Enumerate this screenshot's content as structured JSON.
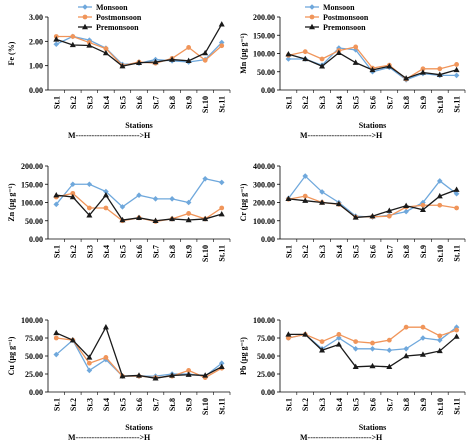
{
  "colors": {
    "Monsoon": "#6fa8dc",
    "Postmonsoon": "#f0955a",
    "Premonsoon": "#1a1a1a"
  },
  "chart_data": [
    {
      "type": "line",
      "categories": [
        "St.1",
        "St.2",
        "St.3",
        "St.4",
        "St.5",
        "St.6",
        "St.7",
        "St.8",
        "St.9",
        "St.10",
        "St.11"
      ],
      "ylabel": "Fe (%)",
      "xlabel": "Stations",
      "gradient_label": "M------------------------>H",
      "yticks": [
        "0.00",
        "1.00",
        "2.00",
        "3.00"
      ],
      "ylim": [
        0,
        3
      ],
      "legend": "top-left",
      "series": [
        {
          "name": "Monsoon",
          "values": [
            1.88,
            2.2,
            2.05,
            1.72,
            1.05,
            1.1,
            1.25,
            1.2,
            1.15,
            1.25,
            1.95
          ]
        },
        {
          "name": "Postmonsoon",
          "values": [
            2.2,
            2.2,
            1.95,
            1.7,
            1.0,
            1.15,
            1.1,
            1.3,
            1.75,
            1.22,
            1.82
          ]
        },
        {
          "name": "Premonsoon",
          "values": [
            2.08,
            1.85,
            1.83,
            1.52,
            0.98,
            1.12,
            1.15,
            1.25,
            1.2,
            1.52,
            2.7
          ]
        }
      ]
    },
    {
      "type": "line",
      "categories": [
        "St.1",
        "St.2",
        "St.3",
        "St.4",
        "St.5",
        "St.6",
        "St.7",
        "St.8",
        "St.9",
        "St.10",
        "St.11"
      ],
      "ylabel": "Mn (µg g⁻¹)",
      "xlabel": "Stations",
      "gradient_label": "M------------------------>H",
      "yticks": [
        "0.00",
        "50.00",
        "100.00",
        "150.00",
        "200.00"
      ],
      "ylim": [
        0,
        200
      ],
      "legend": "top-left",
      "series": [
        {
          "name": "Monsoon",
          "values": [
            85,
            85,
            68,
            115,
            110,
            50,
            62,
            28,
            45,
            40,
            40
          ]
        },
        {
          "name": "Postmonsoon",
          "values": [
            95,
            105,
            85,
            108,
            118,
            60,
            68,
            30,
            58,
            58,
            70
          ]
        },
        {
          "name": "Premonsoon",
          "values": [
            98,
            85,
            65,
            102,
            75,
            55,
            65,
            32,
            48,
            42,
            55
          ]
        }
      ]
    },
    {
      "type": "line",
      "categories": [
        "St.1",
        "St.2",
        "St.3",
        "St.4",
        "St.5",
        "St.6",
        "St.7",
        "St.8",
        "St.9",
        "St.10",
        "St.11"
      ],
      "ylabel": "Zn (µg g⁻¹)",
      "xlabel": "",
      "yticks": [
        "0.00",
        "50.00",
        "100.00",
        "150.00",
        "200.00"
      ],
      "ylim": [
        0,
        200
      ],
      "series": [
        {
          "name": "Monsoon",
          "values": [
            95,
            150,
            150,
            130,
            88,
            120,
            110,
            110,
            100,
            165,
            155
          ]
        },
        {
          "name": "Postmonsoon",
          "values": [
            115,
            125,
            85,
            85,
            50,
            58,
            48,
            55,
            70,
            55,
            85
          ]
        },
        {
          "name": "Premonsoon",
          "values": [
            120,
            115,
            65,
            120,
            52,
            58,
            50,
            55,
            52,
            55,
            68
          ]
        }
      ]
    },
    {
      "type": "line",
      "categories": [
        "St.1",
        "St.2",
        "St.3",
        "St.4",
        "St.5",
        "St.6",
        "St.7",
        "St.8",
        "St.9",
        "St.10",
        "St.11"
      ],
      "ylabel": "Cr (µg g⁻¹)",
      "xlabel": "",
      "yticks": [
        "0.00",
        "100.00",
        "200.00",
        "300.00",
        "400.00"
      ],
      "ylim": [
        0,
        400
      ],
      "series": [
        {
          "name": "Monsoon",
          "values": [
            222,
            345,
            258,
            200,
            125,
            120,
            130,
            150,
            200,
            318,
            248
          ]
        },
        {
          "name": "Postmonsoon",
          "values": [
            218,
            235,
            200,
            190,
            120,
            122,
            125,
            175,
            185,
            185,
            170
          ]
        },
        {
          "name": "Premonsoon",
          "values": [
            220,
            210,
            200,
            192,
            118,
            125,
            155,
            182,
            160,
            235,
            270
          ]
        }
      ]
    },
    {
      "type": "line",
      "categories": [
        "St.1",
        "St.2",
        "St.3",
        "St.4",
        "St.5",
        "St.6",
        "St.7",
        "St.8",
        "St.9",
        "St.10",
        "St.11"
      ],
      "ylabel": "Cu (µg g⁻¹)",
      "xlabel": "Stations",
      "gradient_label": "M------------------------>H",
      "yticks": [
        "0.00",
        "25.00",
        "50.00",
        "75.00",
        "100.00"
      ],
      "ylim": [
        0,
        100
      ],
      "series": [
        {
          "name": "Monsoon",
          "values": [
            52,
            72,
            30,
            45,
            22,
            22,
            22,
            25,
            25,
            22,
            40
          ]
        },
        {
          "name": "Postmonsoon",
          "values": [
            75,
            72,
            40,
            48,
            22,
            22,
            20,
            22,
            30,
            20,
            33
          ]
        },
        {
          "name": "Premonsoon",
          "values": [
            82,
            72,
            48,
            90,
            22,
            23,
            19,
            23,
            24,
            23,
            35
          ]
        }
      ]
    },
    {
      "type": "line",
      "categories": [
        "St.1",
        "St.2",
        "St.3",
        "St.4",
        "St.5",
        "St.6",
        "St.7",
        "St.8",
        "St.9",
        "St.10",
        "St.11"
      ],
      "ylabel": "Pb (µg g⁻¹)",
      "xlabel": "Stations",
      "gradient_label": "M------------------------>H",
      "yticks": [
        "0.00",
        "25.00",
        "50.00",
        "75.00",
        "100.00"
      ],
      "ylim": [
        0,
        100
      ],
      "series": [
        {
          "name": "Monsoon",
          "values": [
            75,
            80,
            60,
            75,
            60,
            60,
            58,
            60,
            75,
            72,
            90
          ]
        },
        {
          "name": "Postmonsoon",
          "values": [
            75,
            80,
            70,
            80,
            70,
            68,
            72,
            90,
            90,
            78,
            86
          ]
        },
        {
          "name": "Premonsoon",
          "values": [
            80,
            80,
            58,
            66,
            35,
            36,
            35,
            50,
            52,
            57,
            77
          ]
        }
      ]
    }
  ]
}
